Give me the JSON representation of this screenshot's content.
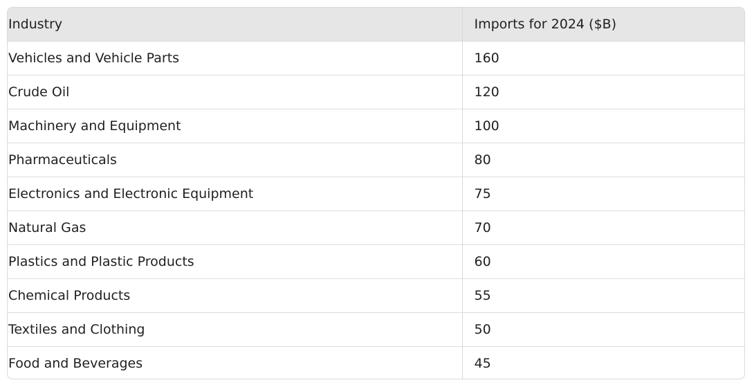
{
  "table": {
    "headers": [
      "Industry",
      "Imports for 2024 ($B)"
    ],
    "rows": [
      [
        "Vehicles and Vehicle Parts",
        "160"
      ],
      [
        "Crude Oil",
        "120"
      ],
      [
        "Machinery and Equipment",
        "100"
      ],
      [
        "Pharmaceuticals",
        "80"
      ],
      [
        "Electronics and Electronic Equipment",
        "75"
      ],
      [
        "Natural Gas",
        "70"
      ],
      [
        "Plastics and Plastic Products",
        "60"
      ],
      [
        "Chemical Products",
        "55"
      ],
      [
        "Textiles and Clothing",
        "50"
      ],
      [
        "Food and Beverages",
        "45"
      ]
    ]
  }
}
